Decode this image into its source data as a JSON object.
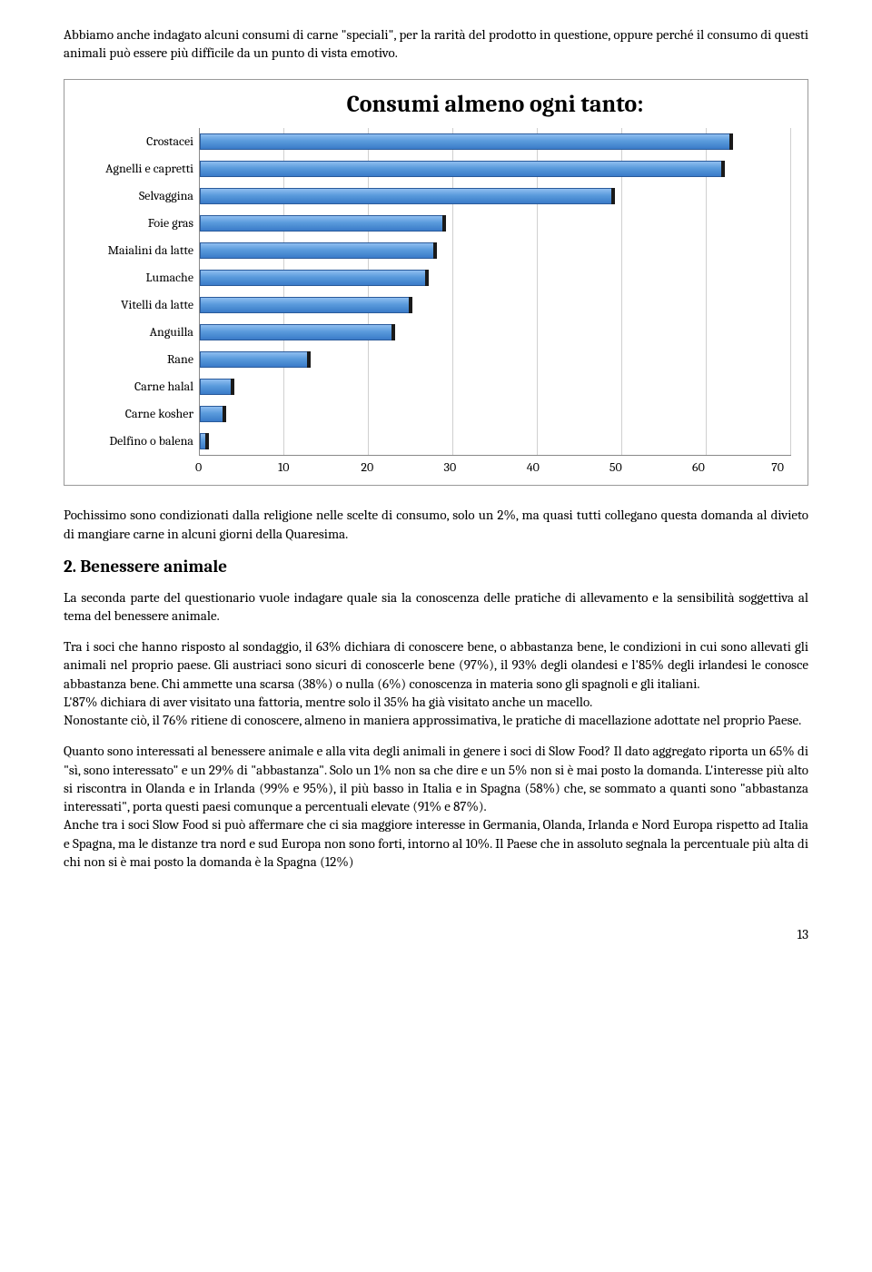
{
  "intro": "Abbiamo anche indagato alcuni consumi di carne \"speciali\", per la rarità del prodotto in questione, oppure perché il consumo di questi animali può essere più difficile da un punto di vista emotivo.",
  "chart": {
    "title": "Consumi almeno ogni tanto:",
    "xmax": 70,
    "xticks": [
      "0",
      "10",
      "20",
      "30",
      "40",
      "50",
      "60",
      "70"
    ],
    "bar_fill_top": "#8fbef0",
    "bar_fill_mid": "#5a9bdc",
    "bar_fill_bot": "#3a7bc8",
    "bar_border": "#2a5a9a",
    "grid_color": "#d0d0d0",
    "categories": [
      {
        "label": "Crostacei",
        "value": 63
      },
      {
        "label": "Agnelli e capretti",
        "value": 62
      },
      {
        "label": "Selvaggina",
        "value": 49
      },
      {
        "label": "Foie gras",
        "value": 29
      },
      {
        "label": "Maialini da latte",
        "value": 28
      },
      {
        "label": "Lumache",
        "value": 27
      },
      {
        "label": "Vitelli da latte",
        "value": 25
      },
      {
        "label": "Anguilla",
        "value": 23
      },
      {
        "label": "Rane",
        "value": 13
      },
      {
        "label": "Carne halal",
        "value": 4
      },
      {
        "label": "Carne kosher",
        "value": 3
      },
      {
        "label": "Delfino o balena",
        "value": 1
      }
    ]
  },
  "para1": "Pochissimo sono condizionati dalla religione nelle scelte di consumo, solo un 2%, ma quasi tutti collegano questa domanda al divieto di mangiare carne in alcuni giorni della Quaresima.",
  "section_num": "2.",
  "section_title": "Benessere animale",
  "para2": "La seconda parte del questionario vuole indagare quale sia la conoscenza delle pratiche di allevamento e  la sensibilità soggettiva al tema del benessere animale.",
  "para3": "Tra i soci che hanno risposto al sondaggio, il 63% dichiara di conoscere bene, o abbastanza bene, le condizioni in cui sono allevati gli animali nel proprio paese. Gli austriaci sono sicuri di conoscerle bene (97%), il 93% degli olandesi e l'85% degli irlandesi le conosce abbastanza bene. Chi ammette una scarsa (38%) o nulla (6%) conoscenza in materia sono gli spagnoli e gli italiani.",
  "para3b": "L'87% dichiara di aver visitato una fattoria, mentre solo il 35% ha già visitato anche un macello.",
  "para3c": "Nonostante ciò, il 76% ritiene di conoscere, almeno in maniera approssimativa, le pratiche di macellazione adottate nel proprio Paese.",
  "para4": "Quanto sono interessati al benessere animale e alla vita degli animali in genere i soci di Slow Food? Il dato aggregato riporta un 65% di \"sì, sono interessato\" e un 29% di \"abbastanza\". Solo un 1% non sa che dire e un 5% non si è mai posto la domanda. L'interesse più alto si riscontra in Olanda e in Irlanda (99% e 95%), il più basso in Italia e in Spagna (58%) che, se sommato a quanti sono \"abbastanza interessati\", porta questi paesi comunque a percentuali elevate (91% e 87%).",
  "para4b": "Anche tra i soci Slow Food si può affermare che ci sia maggiore interesse in Germania, Olanda, Irlanda e Nord Europa rispetto ad Italia e Spagna, ma le distanze tra nord e sud Europa non sono forti, intorno al 10%. Il Paese che in assoluto segnala la percentuale più alta di chi non si è mai posto la domanda è la Spagna (12%)",
  "pagenum": "13"
}
